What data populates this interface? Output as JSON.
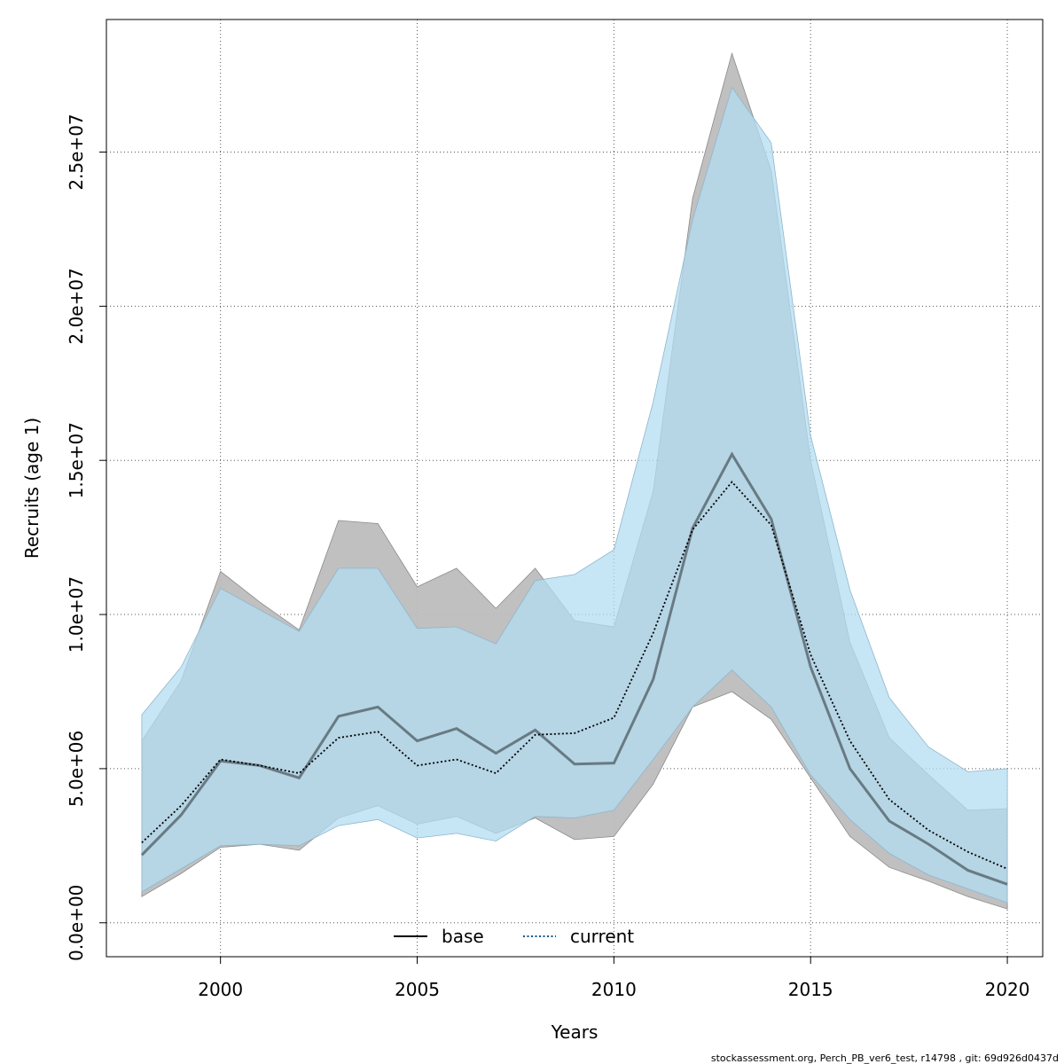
{
  "chart_data": {
    "type": "line",
    "xlabel": "Years",
    "ylabel": "Recruits (age 1)",
    "xlim": [
      1997.1,
      2020.9
    ],
    "ylim": [
      -1100000,
      29300000
    ],
    "x_ticks": [
      2000,
      2005,
      2010,
      2015,
      2020
    ],
    "x_tick_labels": [
      "2000",
      "2005",
      "2010",
      "2015",
      "2020"
    ],
    "y_ticks": [
      0,
      5000000,
      10000000,
      15000000,
      20000000,
      25000000
    ],
    "y_tick_labels": [
      "0.0e+00",
      "5.0e+06",
      "1.0e+07",
      "1.5e+07",
      "2.0e+07",
      "2.5e+07"
    ],
    "grid": true,
    "x": [
      1998,
      1999,
      2000,
      2001,
      2002,
      2003,
      2004,
      2005,
      2006,
      2007,
      2008,
      2009,
      2010,
      2011,
      2012,
      2013,
      2014,
      2015,
      2016,
      2017,
      2018,
      2019,
      2020
    ],
    "series": [
      {
        "name": "base",
        "line_style": "solid",
        "color": "#000000",
        "band_color": "#bdbdbd",
        "values": [
          2200000,
          3500000,
          5250000,
          5100000,
          4700000,
          6700000,
          7000000,
          5900000,
          6300000,
          5500000,
          6250000,
          5150000,
          5180000,
          7900000,
          12800000,
          15200000,
          13100000,
          8300000,
          5000000,
          3300000,
          2550000,
          1700000,
          1250000
        ],
        "lower": [
          850000,
          1600000,
          2450000,
          2550000,
          2350000,
          3400000,
          3800000,
          3200000,
          3450000,
          2900000,
          3400000,
          2700000,
          2800000,
          4500000,
          7000000,
          7500000,
          6600000,
          4700000,
          2800000,
          1800000,
          1350000,
          850000,
          450000
        ],
        "upper": [
          5900000,
          7850000,
          11400000,
          10400000,
          9500000,
          13050000,
          12950000,
          10900000,
          11500000,
          10200000,
          11500000,
          9800000,
          9600000,
          14000000,
          23500000,
          28200000,
          24400000,
          15000000,
          9100000,
          6000000,
          4800000,
          3650000,
          3700000
        ]
      },
      {
        "name": "current",
        "line_style": "dotted",
        "color": "#0b5a8a",
        "band_color": "#b3dcf2",
        "values": [
          2600000,
          3800000,
          5300000,
          5100000,
          4850000,
          6000000,
          6200000,
          5100000,
          5300000,
          4850000,
          6100000,
          6150000,
          6650000,
          9400000,
          12750000,
          14300000,
          12900000,
          8700000,
          5900000,
          4000000,
          3000000,
          2300000,
          1750000
        ],
        "lower": [
          1000000,
          1750000,
          2500000,
          2550000,
          2500000,
          3150000,
          3350000,
          2750000,
          2900000,
          2650000,
          3450000,
          3400000,
          3650000,
          5300000,
          7000000,
          8200000,
          7000000,
          4800000,
          3350000,
          2250000,
          1550000,
          1100000,
          650000
        ],
        "upper": [
          6750000,
          8300000,
          10850000,
          10150000,
          9450000,
          11500000,
          11500000,
          9550000,
          9600000,
          9050000,
          11100000,
          11300000,
          12100000,
          16900000,
          22800000,
          27100000,
          25300000,
          15800000,
          10800000,
          7300000,
          5700000,
          4900000,
          5000000
        ]
      }
    ],
    "legend": {
      "position": "bottom-center",
      "entries": [
        "base",
        "current"
      ]
    }
  },
  "footer_text": "stockassessment.org, Perch_PB_ver6_test, r14798 , git: 69d926d0437d"
}
